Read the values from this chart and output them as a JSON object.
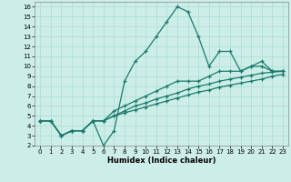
{
  "title": "",
  "xlabel": "Humidex (Indice chaleur)",
  "bg_color": "#cdeee8",
  "line_color": "#1a7a6e",
  "grid_color": "#aaddcc",
  "xlim": [
    -0.5,
    23.5
  ],
  "ylim": [
    2,
    16.5
  ],
  "xticks": [
    0,
    1,
    2,
    3,
    4,
    5,
    6,
    7,
    8,
    9,
    10,
    11,
    12,
    13,
    14,
    15,
    16,
    17,
    18,
    19,
    20,
    21,
    22,
    23
  ],
  "yticks": [
    2,
    3,
    4,
    5,
    6,
    7,
    8,
    9,
    10,
    11,
    12,
    13,
    14,
    15,
    16
  ],
  "series": [
    {
      "x": [
        0,
        1,
        2,
        3,
        4,
        5,
        6,
        7,
        8,
        9,
        10,
        11,
        12,
        13,
        14,
        15,
        16,
        17,
        18,
        19,
        20,
        21,
        22,
        23
      ],
      "y": [
        4.5,
        4.5,
        3.0,
        3.5,
        3.5,
        4.5,
        2.0,
        3.5,
        8.5,
        10.5,
        11.5,
        13.0,
        14.5,
        16.0,
        15.5,
        13.0,
        10.0,
        11.5,
        11.5,
        9.5,
        10.0,
        10.5,
        9.5,
        9.5
      ]
    },
    {
      "x": [
        0,
        1,
        2,
        3,
        4,
        5,
        6,
        7,
        8,
        9,
        10,
        11,
        12,
        13,
        14,
        15,
        16,
        17,
        18,
        19,
        20,
        21,
        22,
        23
      ],
      "y": [
        4.5,
        4.5,
        3.0,
        3.5,
        3.5,
        4.5,
        4.5,
        5.5,
        6.0,
        6.5,
        7.0,
        7.5,
        8.0,
        8.5,
        8.5,
        8.5,
        9.0,
        9.5,
        9.5,
        9.5,
        10.0,
        10.0,
        9.5,
        9.5
      ]
    },
    {
      "x": [
        0,
        1,
        2,
        3,
        4,
        5,
        6,
        7,
        8,
        9,
        10,
        11,
        12,
        13,
        14,
        15,
        16,
        17,
        18,
        19,
        20,
        21,
        22,
        23
      ],
      "y": [
        4.5,
        4.5,
        3.0,
        3.5,
        3.5,
        4.5,
        4.5,
        5.0,
        5.5,
        6.0,
        6.3,
        6.7,
        7.0,
        7.3,
        7.7,
        8.0,
        8.2,
        8.5,
        8.7,
        8.9,
        9.1,
        9.3,
        9.4,
        9.5
      ]
    },
    {
      "x": [
        0,
        1,
        2,
        3,
        4,
        5,
        6,
        7,
        8,
        9,
        10,
        11,
        12,
        13,
        14,
        15,
        16,
        17,
        18,
        19,
        20,
        21,
        22,
        23
      ],
      "y": [
        4.5,
        4.5,
        3.0,
        3.5,
        3.5,
        4.5,
        4.5,
        5.0,
        5.3,
        5.6,
        5.9,
        6.2,
        6.5,
        6.8,
        7.1,
        7.4,
        7.6,
        7.9,
        8.1,
        8.3,
        8.5,
        8.7,
        9.0,
        9.2
      ]
    }
  ],
  "tick_fontsize": 5,
  "xlabel_fontsize": 6,
  "linewidth": 0.9,
  "markersize": 3.5,
  "markeredgewidth": 0.9
}
